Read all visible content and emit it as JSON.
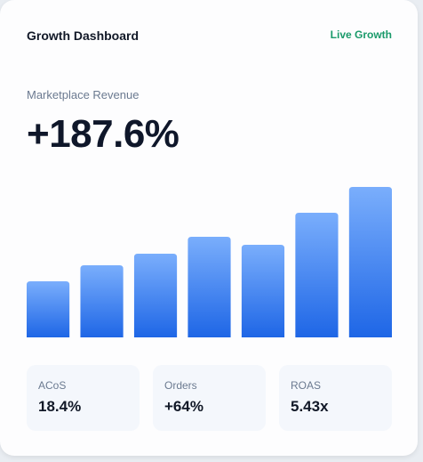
{
  "header": {
    "title": "Growth Dashboard",
    "badge": "Live Growth"
  },
  "metric": {
    "label": "Marketplace Revenue",
    "value": "+187.6%"
  },
  "chart_data": {
    "type": "bar",
    "values": [
      63,
      81,
      94,
      113,
      104,
      140,
      169
    ],
    "ylim": [
      0,
      170
    ],
    "color_top": "#7aaefc",
    "color_bottom": "#1e66e6"
  },
  "stats": [
    {
      "label": "ACoS",
      "value": "18.4%"
    },
    {
      "label": "Orders",
      "value": "+64%"
    },
    {
      "label": "ROAS",
      "value": "5.43x"
    }
  ]
}
